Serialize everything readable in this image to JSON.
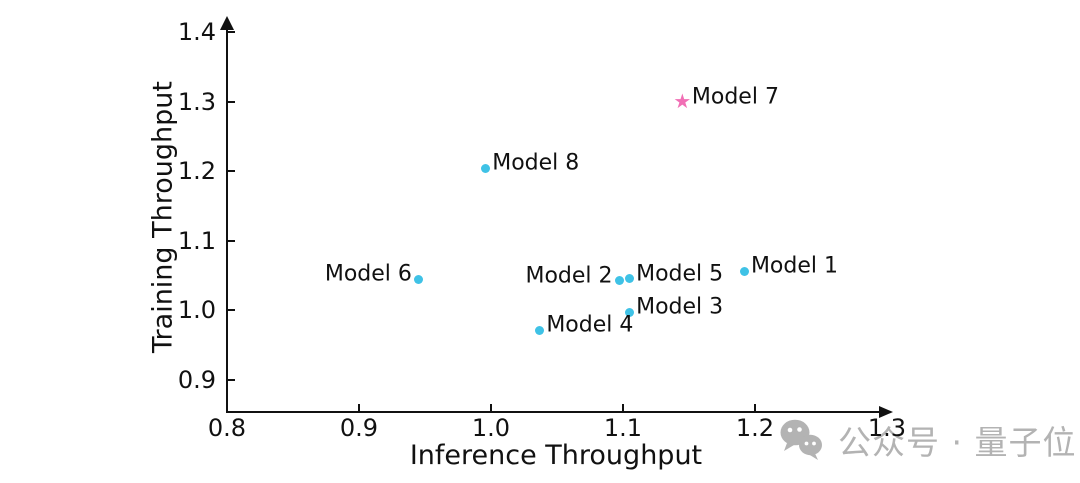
{
  "chart_data": {
    "type": "scatter",
    "title": "",
    "xlabel": "Inference Throughput",
    "ylabel": "Training Throughput",
    "xlim": [
      0.8,
      1.3
    ],
    "ylim": [
      0.85,
      1.4
    ],
    "grid": false,
    "legend": "none (points labeled inline)",
    "xticks": [
      0.8,
      0.9,
      1.0,
      1.1,
      1.2,
      1.3
    ],
    "yticks": [
      0.9,
      1.0,
      1.1,
      1.2,
      1.3,
      1.4
    ],
    "points": [
      {
        "label": "Model 1",
        "x": 1.192,
        "y": 1.056,
        "marker": "dot",
        "label_side": "right"
      },
      {
        "label": "Model 2",
        "x": 1.097,
        "y": 1.042,
        "marker": "dot",
        "label_side": "left"
      },
      {
        "label": "Model 3",
        "x": 1.105,
        "y": 0.997,
        "marker": "dot",
        "label_side": "right"
      },
      {
        "label": "Model 4",
        "x": 1.037,
        "y": 0.971,
        "marker": "dot",
        "label_side": "right"
      },
      {
        "label": "Model 5",
        "x": 1.105,
        "y": 1.045,
        "marker": "dot",
        "label_side": "right"
      },
      {
        "label": "Model 6",
        "x": 0.945,
        "y": 1.044,
        "marker": "dot",
        "label_side": "left"
      },
      {
        "label": "Model 7",
        "x": 1.145,
        "y": 1.299,
        "marker": "star",
        "label_side": "right"
      },
      {
        "label": "Model 8",
        "x": 0.996,
        "y": 1.204,
        "marker": "dot",
        "label_side": "right"
      }
    ],
    "colors": {
      "dot": "#3FC2E6",
      "star": "#F16FB5",
      "axis": "#111111",
      "text": "#111111"
    }
  },
  "icons": {
    "star_marker": "★"
  },
  "watermark": {
    "text": "公众号 · 量子位",
    "icon": "wechat-icon",
    "color": "#B3B3B3"
  }
}
